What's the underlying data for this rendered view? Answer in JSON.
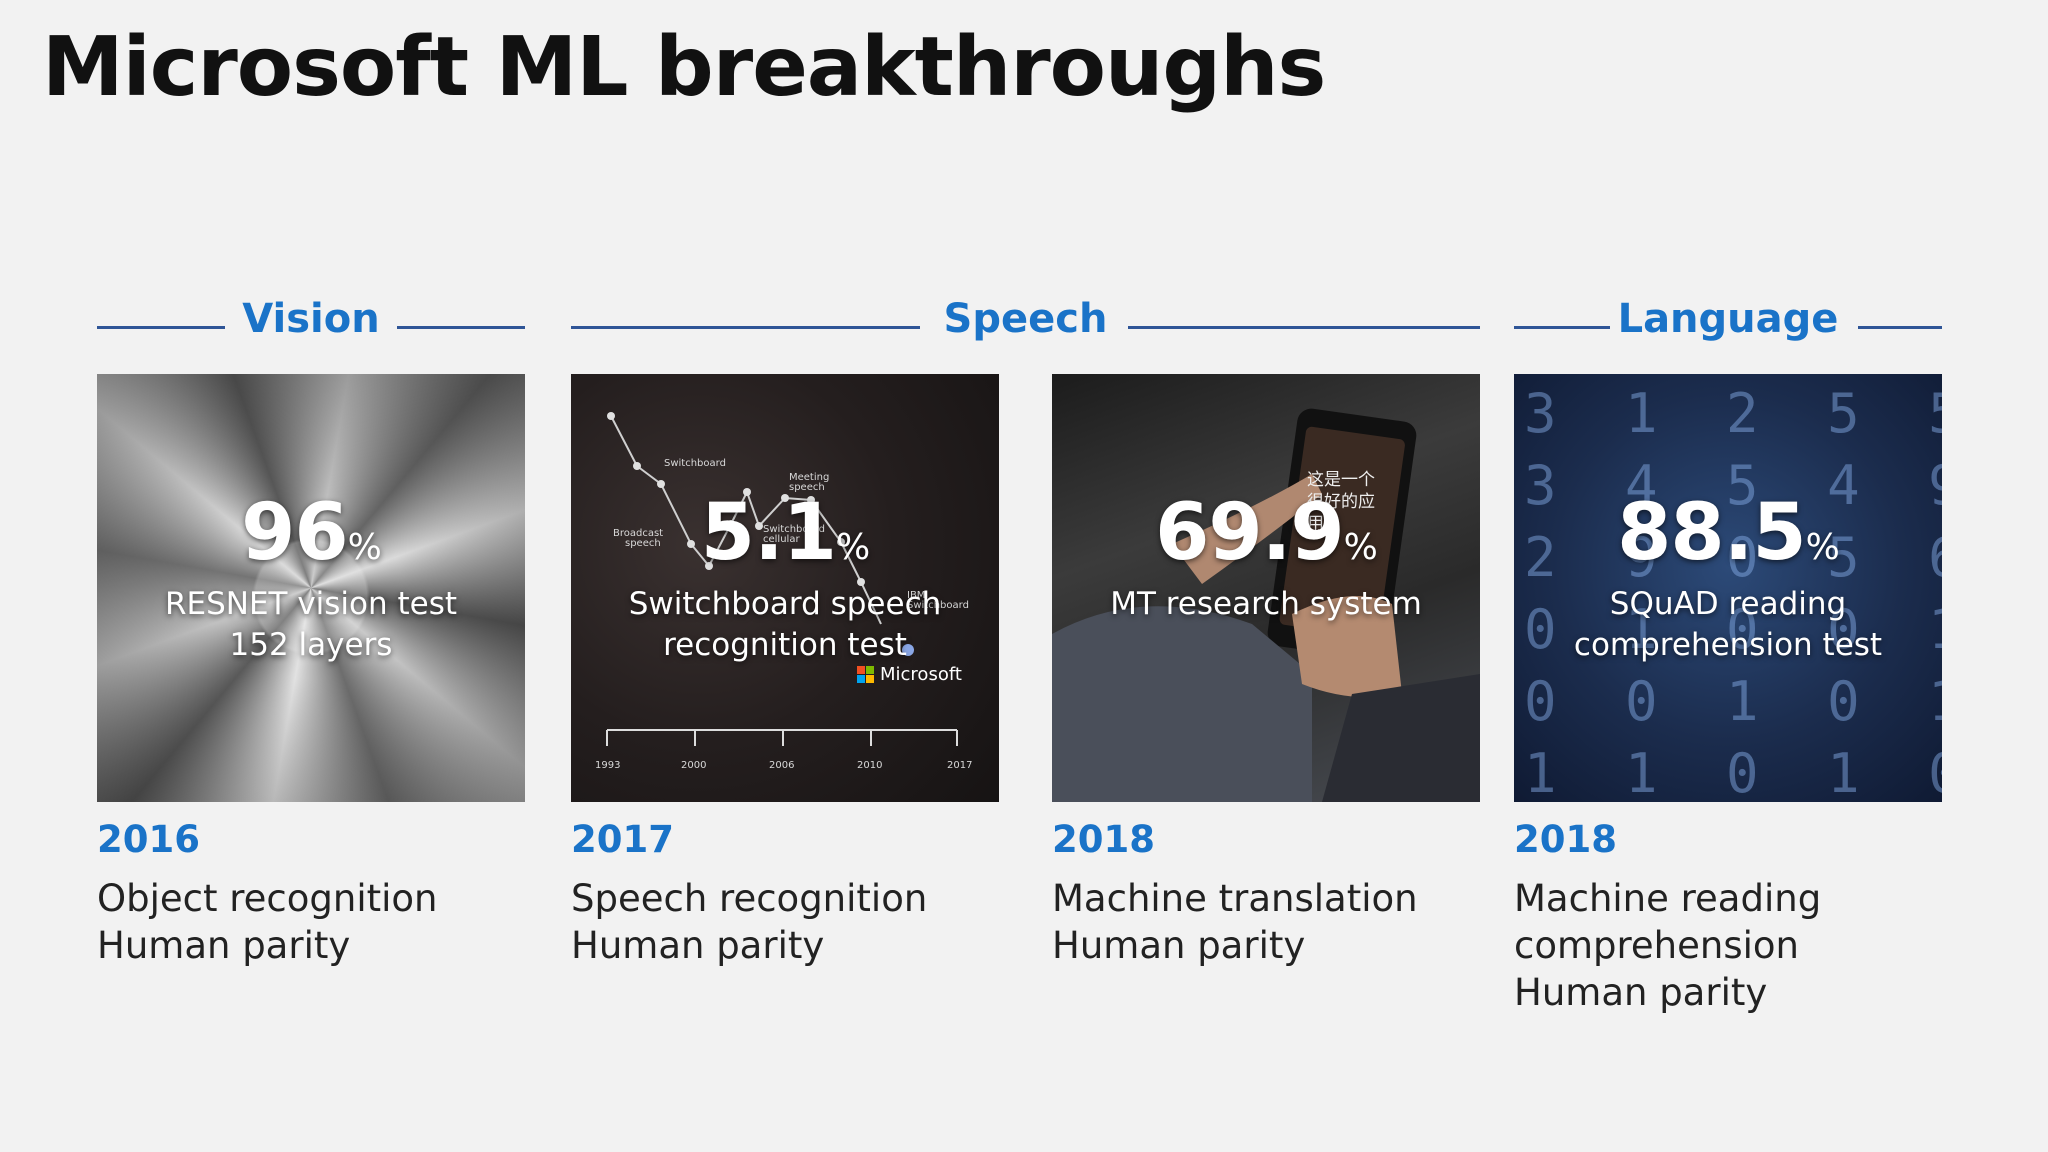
{
  "title": "Microsoft ML breakthroughs",
  "sections": {
    "vision": "Vision",
    "speech": "Speech",
    "language": "Language"
  },
  "cards": [
    {
      "value": "96",
      "unit": "%",
      "subtitle_1": "RESNET vision test",
      "subtitle_2": "152 layers",
      "year": "2016",
      "desc_1": "Object recognition",
      "desc_2": "Human parity"
    },
    {
      "value": "5.1",
      "unit": "%",
      "subtitle_1": "Switchboard speech",
      "subtitle_2": "recognition test",
      "year": "2017",
      "desc_1": "Speech recognition",
      "desc_2": "Human parity",
      "chart_labels": {
        "switchboard": "Switchboard",
        "meeting_1": "Meeting",
        "meeting_2": "speech",
        "broadcast_1": "Broadcast",
        "broadcast_2": "speech",
        "switch_cell_1": "Switchboard",
        "switch_cell_2": "cellular",
        "ibm_1": "IBM",
        "ibm_2": "Switchboard",
        "years": [
          "1993",
          "2000",
          "2006",
          "2010",
          "2017"
        ],
        "logo": "Microsoft"
      }
    },
    {
      "value": "69.9",
      "unit": "%",
      "subtitle_1": "MT research system",
      "year": "2018",
      "desc_1": "Machine translation",
      "desc_2": "Human parity",
      "phone_text": "这是一个很好的应用。"
    },
    {
      "value": "88.5",
      "unit": "%",
      "subtitle_1": "SQuAD reading",
      "subtitle_2": "comprehension test",
      "year": "2018",
      "desc_1": "Machine reading",
      "desc_2": "comprehension",
      "desc_3": "Human parity"
    }
  ],
  "colors": {
    "accent": "#1a73c8",
    "rule": "#2f5597",
    "background": "#f2f2f2"
  }
}
